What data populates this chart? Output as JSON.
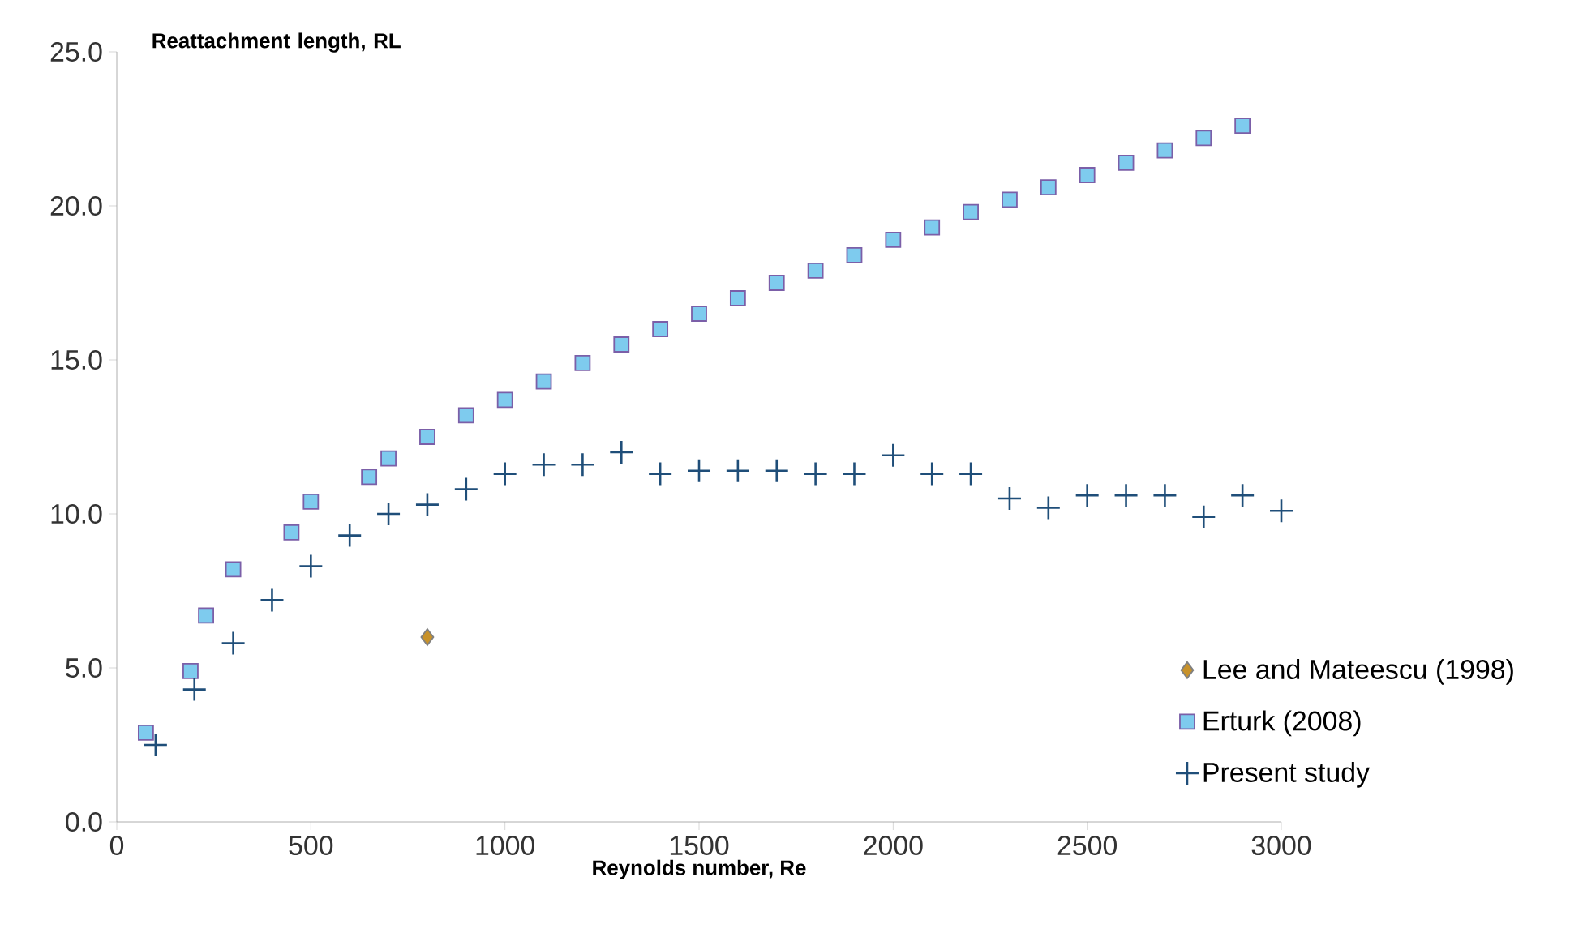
{
  "chart_data": {
    "type": "scatter",
    "xlabel": "Reynolds number, Re",
    "ylabel": "Reattachment length, RL",
    "xlim": [
      0,
      3000
    ],
    "xticks": [
      0,
      500,
      1000,
      1500,
      2000,
      2500,
      3000
    ],
    "ylim": [
      0,
      25
    ],
    "yticks": [
      {
        "value": 0,
        "label": "0.0"
      },
      {
        "value": 5,
        "label": "5.0"
      },
      {
        "value": 10,
        "label": "10.0"
      },
      {
        "value": 15,
        "label": "15.0"
      },
      {
        "value": 20,
        "label": "20.0"
      },
      {
        "value": 25,
        "label": "25.0"
      }
    ],
    "grid": false,
    "legend": "right",
    "series": [
      {
        "name": "Lee and Mateescu (1998)",
        "color": "#c8922a",
        "marker": "diamond",
        "x": [
          800
        ],
        "values": [
          6.0
        ]
      },
      {
        "name": "Erturk (2008)",
        "color": "#7ecbee",
        "marker": "square",
        "x": [
          75,
          190,
          230,
          300,
          450,
          500,
          650,
          700,
          800,
          900,
          1000,
          1100,
          1200,
          1300,
          1400,
          1500,
          1600,
          1700,
          1800,
          1900,
          2000,
          2100,
          2200,
          2300,
          2400,
          2500,
          2600,
          2700,
          2800,
          2900
        ],
        "values": [
          2.9,
          4.9,
          6.7,
          8.2,
          9.4,
          10.4,
          11.2,
          11.8,
          12.5,
          13.2,
          13.7,
          14.3,
          14.9,
          15.5,
          16.0,
          16.5,
          17.0,
          17.5,
          17.9,
          18.4,
          18.9,
          19.3,
          19.8,
          20.2,
          20.6,
          21.0,
          21.4,
          21.8,
          22.2,
          22.6
        ]
      },
      {
        "name": "Present study",
        "color": "#1f4e79",
        "marker": "cross",
        "x": [
          100,
          200,
          300,
          400,
          500,
          600,
          700,
          800,
          900,
          1000,
          1100,
          1200,
          1300,
          1400,
          1500,
          1600,
          1700,
          1800,
          1900,
          2000,
          2100,
          2200,
          2300,
          2400,
          2500,
          2600,
          2700,
          2800,
          2900,
          3000
        ],
        "values": [
          2.5,
          4.3,
          5.8,
          7.2,
          8.3,
          9.3,
          10.0,
          10.3,
          10.8,
          11.3,
          11.6,
          11.6,
          12.0,
          11.3,
          11.4,
          11.4,
          11.4,
          11.3,
          11.3,
          11.9,
          11.3,
          11.3,
          10.5,
          10.2,
          10.6,
          10.6,
          10.6,
          9.9,
          10.6,
          10.1
        ]
      }
    ]
  }
}
